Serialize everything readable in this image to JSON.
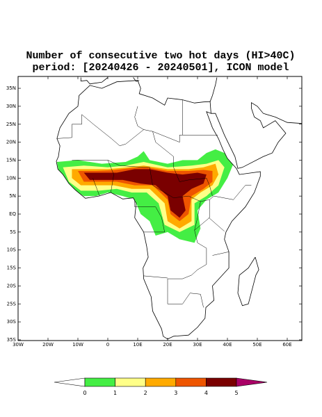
{
  "title": {
    "line1": "Number of consecutive two hot days (HI>40C)",
    "line2": "period: [20240426 - 20240501], ICON model"
  },
  "lon_ticks": [
    {
      "value": -30,
      "label": "30W"
    },
    {
      "value": -20,
      "label": "20W"
    },
    {
      "value": -10,
      "label": "10W"
    },
    0,
    {
      "value": 10,
      "label": "10E"
    },
    {
      "value": 20,
      "label": "20E"
    },
    {
      "value": 30,
      "label": "30E"
    },
    {
      "value": 40,
      "label": "40E"
    },
    {
      "value": 50,
      "label": "50E"
    },
    {
      "value": 60,
      "label": "60E"
    }
  ],
  "lat_ticks": [
    {
      "value": 35,
      "label": "35N"
    },
    {
      "value": 30,
      "label": "30N"
    },
    {
      "value": 25,
      "label": "25N"
    },
    {
      "value": 20,
      "label": "20N"
    },
    {
      "value": 15,
      "label": "15N"
    },
    {
      "value": 10,
      "label": "10N"
    },
    {
      "value": 5,
      "label": "5N"
    },
    {
      "value": 0,
      "label": "EQ"
    },
    {
      "value": -5,
      "label": "5S"
    },
    {
      "value": -10,
      "label": "10S"
    },
    {
      "value": -15,
      "label": "15S"
    },
    {
      "value": -20,
      "label": "20S"
    },
    {
      "value": -25,
      "label": "25S"
    },
    {
      "value": -30,
      "label": "30S"
    },
    {
      "value": -35,
      "label": "35S"
    }
  ],
  "colorbar": {
    "levels": [
      0,
      1,
      2,
      3,
      4,
      5
    ],
    "colors": [
      "#ffffff",
      "#44ee44",
      "#ffff88",
      "#ffaa00",
      "#ee5500",
      "#7a0000",
      "#aa0066"
    ]
  }
}
